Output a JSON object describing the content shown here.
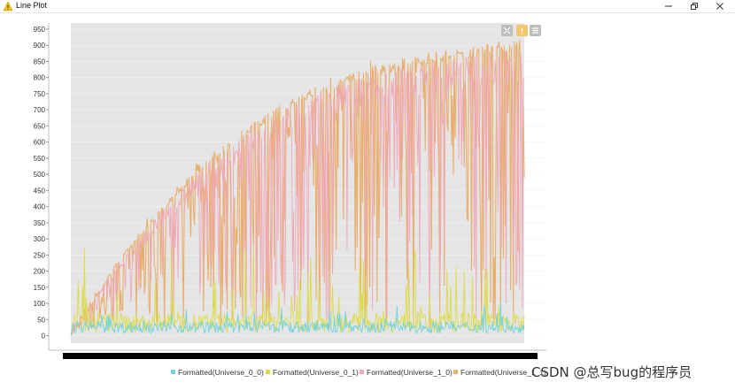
{
  "window": {
    "title": "Line Plot",
    "warning_icon": "warning-triangle-icon",
    "controls": [
      "minimize-icon",
      "restore-icon",
      "close-icon"
    ]
  },
  "plot_toolbar": [
    "fullscreen-icon",
    "warning-icon",
    "menu-icon"
  ],
  "colors": {
    "plot_bg": "#e5e5e5",
    "series": [
      "#6fd3e0",
      "#dcdc4a",
      "#f0a8b8",
      "#e8ae6c"
    ]
  },
  "watermark": "CSDN @总写bug的程序员",
  "chart_data": {
    "type": "line",
    "title": "",
    "xlabel": "",
    "ylabel": "",
    "ylim": [
      -20,
      960
    ],
    "yticks": [
      0,
      50,
      100,
      150,
      200,
      250,
      300,
      350,
      400,
      450,
      500,
      550,
      600,
      650,
      700,
      750,
      800,
      850,
      900,
      950
    ],
    "x_points": 500,
    "legend_position": "bottom",
    "grid": true,
    "series": [
      {
        "name": "Formatted(Universe_0_0)",
        "min_approx": 0,
        "max_approx": 110
      },
      {
        "name": "Formatted(Universe_0_1)",
        "min_approx": 0,
        "max_approx": 300
      },
      {
        "name": "Formatted(Universe_1_0)",
        "min_approx": 0,
        "max_approx": 920
      },
      {
        "name": "Formatted(Universe_1_1)",
        "min_approx": 0,
        "max_approx": 925,
        "envelope": [
          [
            0,
            0
          ],
          [
            50,
            225
          ],
          [
            100,
            400
          ],
          [
            150,
            555
          ],
          [
            200,
            660
          ],
          [
            250,
            750
          ],
          [
            300,
            810
          ],
          [
            350,
            850
          ],
          [
            400,
            880
          ],
          [
            450,
            905
          ],
          [
            499,
            920
          ]
        ]
      }
    ]
  }
}
